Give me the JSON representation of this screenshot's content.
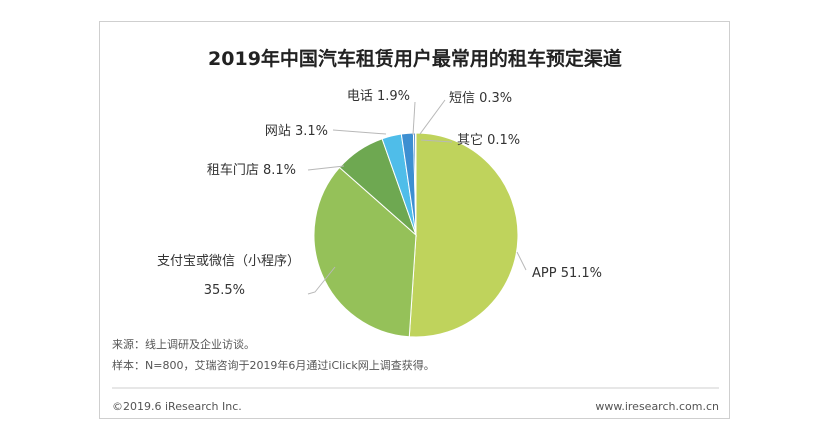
{
  "chart_data": {
    "type": "pie",
    "title": "2019年中国汽车租赁用户最常用的租车预定渠道",
    "slices": [
      {
        "name": "APP",
        "value": 51.1,
        "label": "APP  51.1%",
        "color": "#bfd35c"
      },
      {
        "name": "支付宝或微信（小程序）",
        "value": 35.5,
        "label_line1": "支付宝或微信（小程序）",
        "label_line2": "35.5%",
        "color": "#95c159"
      },
      {
        "name": "租车门店",
        "value": 8.1,
        "label": "租车门店  8.1%",
        "color": "#6ea851"
      },
      {
        "name": "网站",
        "value": 3.1,
        "label": "网站  3.1%",
        "color": "#4fbde9"
      },
      {
        "name": "电话",
        "value": 1.9,
        "label": "电话  1.9%",
        "color": "#3d8fd1"
      },
      {
        "name": "短信",
        "value": 0.3,
        "label": "短信  0.3%",
        "color": "#3e7fc0"
      },
      {
        "name": "其它",
        "value": 0.1,
        "label": "其它  0.1%",
        "color": "#9a9a9a"
      }
    ]
  },
  "notes": {
    "source": "来源：线上调研及企业访谈。",
    "sample": "样本：N=800，艾瑞咨询于2019年6月通过iClick网上调查获得。"
  },
  "footer": {
    "copyright": "©2019.6 iResearch Inc.",
    "website": "www.iresearch.com.cn"
  }
}
